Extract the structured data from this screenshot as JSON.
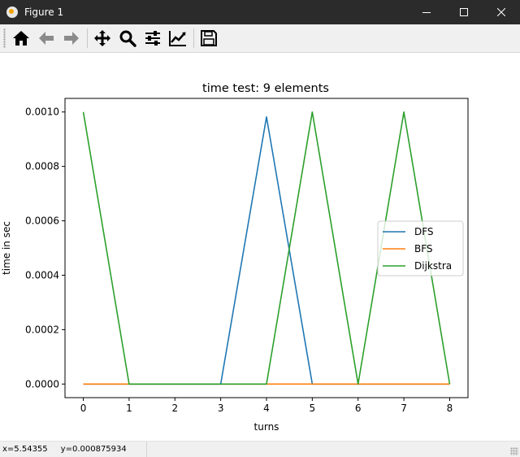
{
  "window": {
    "title": "Figure 1",
    "icons": {
      "app": "matplotlib-icon",
      "minimize": "minimize-icon",
      "maximize": "maximize-icon",
      "close": "close-icon"
    }
  },
  "toolbar": {
    "buttons": [
      {
        "name": "home-button",
        "icon": "home-icon"
      },
      {
        "name": "back-button",
        "icon": "arrow-left-icon"
      },
      {
        "name": "forward-button",
        "icon": "arrow-right-icon"
      },
      {
        "name": "pan-button",
        "icon": "move-icon"
      },
      {
        "name": "zoom-button",
        "icon": "magnifier-icon"
      },
      {
        "name": "subplots-button",
        "icon": "sliders-icon"
      },
      {
        "name": "customize-button",
        "icon": "trend-chart-icon"
      },
      {
        "name": "save-button",
        "icon": "floppy-disk-icon"
      }
    ]
  },
  "status": {
    "x_readout": "x=5.54355",
    "y_readout": "y=0.000875934"
  },
  "chart_data": {
    "type": "line",
    "title": "time test: 9 elements",
    "xlabel": "turns",
    "ylabel": "time in sec",
    "xlim": [
      -0.4,
      8.4
    ],
    "ylim": [
      -5e-05,
      0.00105
    ],
    "xticks": [
      "0",
      "1",
      "2",
      "3",
      "4",
      "5",
      "6",
      "7",
      "8"
    ],
    "yticks": [
      "0.0000",
      "0.0002",
      "0.0004",
      "0.0006",
      "0.0008",
      "0.0010"
    ],
    "grid": false,
    "legend_position": "center-right",
    "x": [
      0,
      1,
      2,
      3,
      4,
      5,
      6,
      7,
      8
    ],
    "series": [
      {
        "name": "DFS",
        "color": "#1f77b4",
        "values": [
          0,
          0,
          0,
          0,
          0.000982,
          0,
          0,
          0,
          0
        ]
      },
      {
        "name": "BFS",
        "color": "#ff7f0e",
        "values": [
          0,
          0,
          0,
          0,
          0,
          0,
          0,
          0,
          0
        ]
      },
      {
        "name": "Dijkstra",
        "color": "#2ca02c",
        "values": [
          0.001,
          0,
          0,
          0,
          0,
          0.001,
          0,
          0.001,
          0
        ]
      }
    ]
  }
}
